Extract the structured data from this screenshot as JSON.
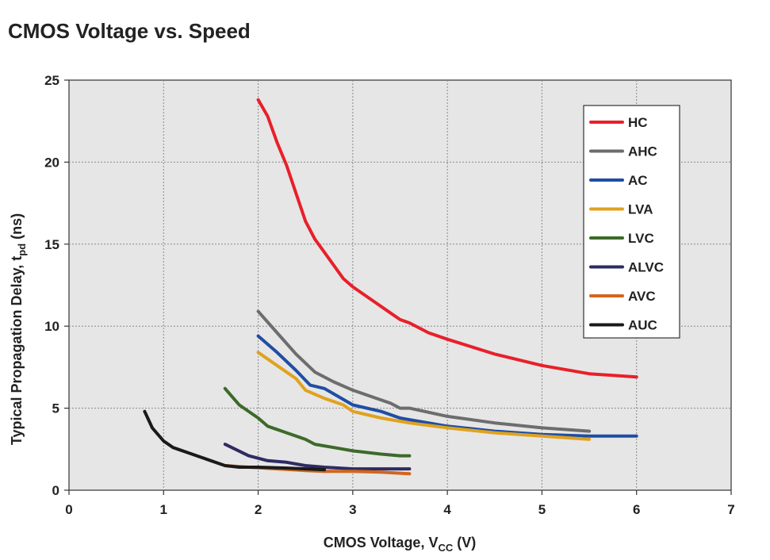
{
  "chart_data": {
    "type": "line",
    "title": "CMOS Voltage vs. Speed",
    "xlabel_main": "CMOS Voltage, V",
    "xlabel_sub": "CC",
    "xlabel_tail": " (V)",
    "ylabel_main": "Typical Propagation Delay, t",
    "ylabel_sub": "pd",
    "ylabel_tail": " (ns)",
    "xlim": [
      0,
      7
    ],
    "ylim": [
      0,
      25
    ],
    "xticks": [
      0,
      1,
      2,
      3,
      4,
      5,
      6,
      7
    ],
    "yticks": [
      0,
      5,
      10,
      15,
      20,
      25
    ],
    "grid": true,
    "legend_position": "top-right",
    "series": [
      {
        "name": "HC",
        "color": "#e8202a",
        "points": [
          [
            2.0,
            23.8
          ],
          [
            2.1,
            22.8
          ],
          [
            2.2,
            21.2
          ],
          [
            2.3,
            19.8
          ],
          [
            2.4,
            18.1
          ],
          [
            2.5,
            16.4
          ],
          [
            2.6,
            15.3
          ],
          [
            2.7,
            14.5
          ],
          [
            2.8,
            13.7
          ],
          [
            2.9,
            12.9
          ],
          [
            3.0,
            12.4
          ],
          [
            3.2,
            11.6
          ],
          [
            3.4,
            10.8
          ],
          [
            3.5,
            10.4
          ],
          [
            3.6,
            10.2
          ],
          [
            3.8,
            9.6
          ],
          [
            4.0,
            9.2
          ],
          [
            4.5,
            8.3
          ],
          [
            5.0,
            7.6
          ],
          [
            5.5,
            7.1
          ],
          [
            6.0,
            6.9
          ]
        ]
      },
      {
        "name": "AHC",
        "color": "#6d6d6d",
        "points": [
          [
            2.0,
            10.9
          ],
          [
            2.2,
            9.6
          ],
          [
            2.4,
            8.3
          ],
          [
            2.6,
            7.2
          ],
          [
            2.8,
            6.6
          ],
          [
            3.0,
            6.1
          ],
          [
            3.2,
            5.7
          ],
          [
            3.4,
            5.3
          ],
          [
            3.5,
            5.0
          ],
          [
            3.6,
            5.0
          ],
          [
            4.0,
            4.5
          ],
          [
            4.5,
            4.1
          ],
          [
            5.0,
            3.8
          ],
          [
            5.5,
            3.6
          ]
        ]
      },
      {
        "name": "AC",
        "color": "#1f4ea3",
        "points": [
          [
            2.0,
            9.4
          ],
          [
            2.2,
            8.4
          ],
          [
            2.4,
            7.3
          ],
          [
            2.55,
            6.4
          ],
          [
            2.7,
            6.2
          ],
          [
            2.85,
            5.7
          ],
          [
            3.0,
            5.2
          ],
          [
            3.3,
            4.8
          ],
          [
            3.5,
            4.4
          ],
          [
            3.6,
            4.3
          ],
          [
            4.0,
            3.9
          ],
          [
            4.5,
            3.6
          ],
          [
            5.0,
            3.4
          ],
          [
            5.5,
            3.3
          ],
          [
            6.0,
            3.3
          ]
        ]
      },
      {
        "name": "LVA",
        "color": "#e0a21d",
        "points": [
          [
            2.0,
            8.4
          ],
          [
            2.2,
            7.6
          ],
          [
            2.4,
            6.8
          ],
          [
            2.5,
            6.1
          ],
          [
            2.7,
            5.6
          ],
          [
            2.9,
            5.2
          ],
          [
            3.0,
            4.8
          ],
          [
            3.3,
            4.4
          ],
          [
            3.5,
            4.2
          ],
          [
            3.6,
            4.1
          ],
          [
            4.0,
            3.8
          ],
          [
            4.5,
            3.5
          ],
          [
            5.0,
            3.3
          ],
          [
            5.5,
            3.1
          ]
        ]
      },
      {
        "name": "LVC",
        "color": "#3c6a2a",
        "points": [
          [
            1.65,
            6.2
          ],
          [
            1.8,
            5.2
          ],
          [
            2.0,
            4.4
          ],
          [
            2.1,
            3.9
          ],
          [
            2.3,
            3.5
          ],
          [
            2.5,
            3.1
          ],
          [
            2.6,
            2.8
          ],
          [
            2.8,
            2.6
          ],
          [
            3.0,
            2.4
          ],
          [
            3.3,
            2.2
          ],
          [
            3.5,
            2.1
          ],
          [
            3.6,
            2.1
          ]
        ]
      },
      {
        "name": "ALVC",
        "color": "#2e2b63",
        "points": [
          [
            1.65,
            2.8
          ],
          [
            1.9,
            2.1
          ],
          [
            2.1,
            1.8
          ],
          [
            2.3,
            1.7
          ],
          [
            2.5,
            1.5
          ],
          [
            2.7,
            1.4
          ],
          [
            3.0,
            1.3
          ],
          [
            3.3,
            1.3
          ],
          [
            3.6,
            1.3
          ]
        ]
      },
      {
        "name": "AVC",
        "color": "#d1661f",
        "points": [
          [
            1.65,
            1.5
          ],
          [
            1.9,
            1.4
          ],
          [
            2.2,
            1.3
          ],
          [
            2.5,
            1.2
          ],
          [
            2.7,
            1.15
          ],
          [
            3.0,
            1.15
          ],
          [
            3.3,
            1.1
          ],
          [
            3.6,
            1.0
          ]
        ]
      },
      {
        "name": "AUC",
        "color": "#1a1a1a",
        "points": [
          [
            0.8,
            4.8
          ],
          [
            0.88,
            3.8
          ],
          [
            1.0,
            3.0
          ],
          [
            1.1,
            2.6
          ],
          [
            1.3,
            2.2
          ],
          [
            1.5,
            1.8
          ],
          [
            1.65,
            1.5
          ],
          [
            1.8,
            1.4
          ],
          [
            2.0,
            1.4
          ],
          [
            2.3,
            1.35
          ],
          [
            2.5,
            1.3
          ],
          [
            2.7,
            1.25
          ]
        ]
      }
    ]
  }
}
